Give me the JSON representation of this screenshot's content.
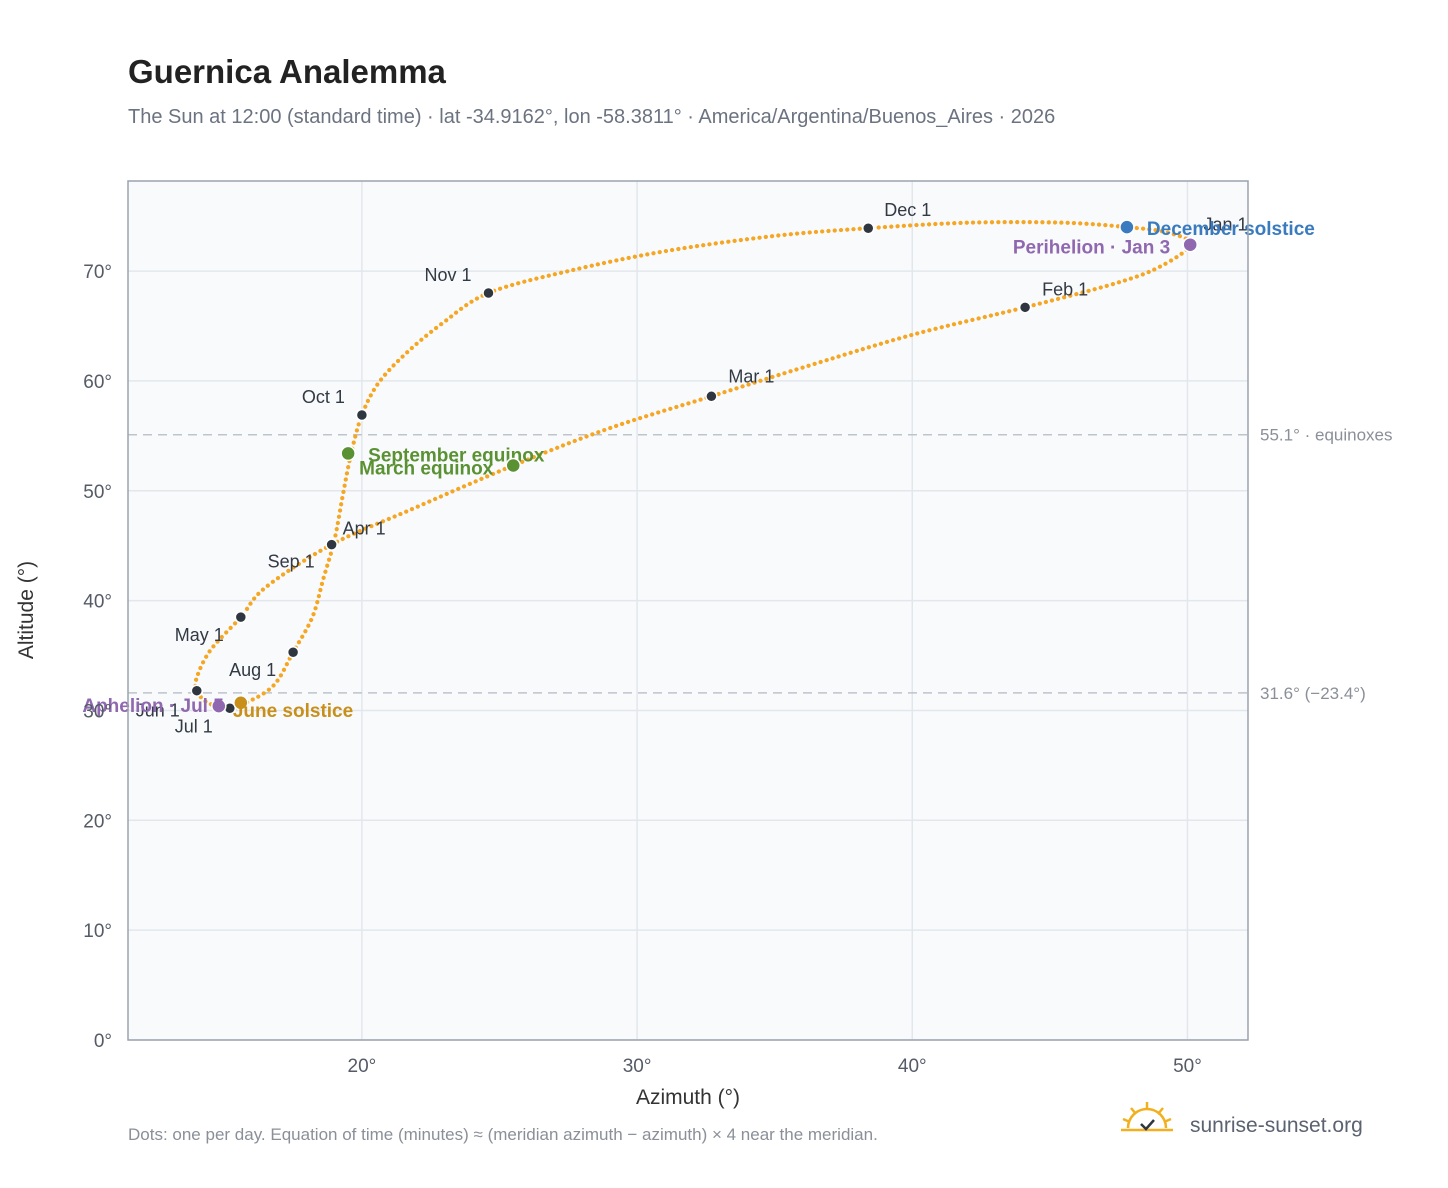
{
  "title": "Guernica Analemma",
  "subtitle": "The Sun at 12:00 (standard time) · lat -34.9162°, lon -58.3811° · America/Argentina/Buenos_Aires · 2026",
  "footnote": "Dots: one per day. Equation of time (minutes) ≈ (meridian azimuth − azimuth) × 4 near the meridian.",
  "brand": {
    "name": "sunrise-sunset.org",
    "icon": "sun-check-icon"
  },
  "colors": {
    "curve": "#f5a623",
    "month_marker": "#2f3640",
    "equinox": "#5a9132",
    "june_solstice": "#c8901a",
    "december_solstice": "#3a7bbf",
    "apsis": "#9068b0",
    "grid": "#e3e7ec",
    "plot_background": "#f8fafc",
    "frame": "#9aa3ae",
    "reference_line": "#bfc4cb"
  },
  "chart_data": {
    "type": "scatter",
    "xlabel": "Azimuth (°)",
    "ylabel": "Altitude (°)",
    "xlim": [
      11.5,
      52.2
    ],
    "ylim": [
      0,
      78.2
    ],
    "x_ticks": [
      {
        "value": 20,
        "label": "20°"
      },
      {
        "value": 30,
        "label": "30°"
      },
      {
        "value": 40,
        "label": "40°"
      },
      {
        "value": 50,
        "label": "50°"
      }
    ],
    "y_ticks": [
      {
        "value": 0,
        "label": "0°"
      },
      {
        "value": 10,
        "label": "10°"
      },
      {
        "value": 20,
        "label": "20°"
      },
      {
        "value": 30,
        "label": "30°"
      },
      {
        "value": 40,
        "label": "40°"
      },
      {
        "value": 50,
        "label": "50°"
      },
      {
        "value": 60,
        "label": "60°"
      },
      {
        "value": 70,
        "label": "70°"
      }
    ],
    "grid": true,
    "daily_dots": "one per day",
    "analemma_path": [
      {
        "az": 50.1,
        "alt": 72.4
      },
      {
        "az": 49.0,
        "alt": 70.4
      },
      {
        "az": 47.4,
        "alt": 68.9
      },
      {
        "az": 44.1,
        "alt": 66.7
      },
      {
        "az": 40.0,
        "alt": 64.2
      },
      {
        "az": 36.0,
        "alt": 61.2
      },
      {
        "az": 32.7,
        "alt": 58.6
      },
      {
        "az": 29.0,
        "alt": 55.7
      },
      {
        "az": 25.5,
        "alt": 52.3
      },
      {
        "az": 21.7,
        "alt": 48.2
      },
      {
        "az": 18.9,
        "alt": 45.1
      },
      {
        "az": 16.5,
        "alt": 41.2
      },
      {
        "az": 15.6,
        "alt": 38.5
      },
      {
        "az": 14.5,
        "alt": 35.5
      },
      {
        "az": 14.0,
        "alt": 33.0
      },
      {
        "az": 14.0,
        "alt": 31.8
      },
      {
        "az": 14.4,
        "alt": 30.7
      },
      {
        "az": 15.2,
        "alt": 30.2
      },
      {
        "az": 15.8,
        "alt": 30.7
      },
      {
        "az": 16.8,
        "alt": 32.3
      },
      {
        "az": 17.5,
        "alt": 35.3
      },
      {
        "az": 18.2,
        "alt": 38.5
      },
      {
        "az": 18.6,
        "alt": 42.0
      },
      {
        "az": 19.0,
        "alt": 45.5
      },
      {
        "az": 19.3,
        "alt": 49.5
      },
      {
        "az": 19.6,
        "alt": 53.3
      },
      {
        "az": 20.0,
        "alt": 56.9
      },
      {
        "az": 20.6,
        "alt": 59.8
      },
      {
        "az": 21.6,
        "alt": 62.5
      },
      {
        "az": 22.9,
        "alt": 65.2
      },
      {
        "az": 24.6,
        "alt": 68.0
      },
      {
        "az": 27.5,
        "alt": 70.0
      },
      {
        "az": 31.0,
        "alt": 71.8
      },
      {
        "az": 35.0,
        "alt": 73.2
      },
      {
        "az": 38.4,
        "alt": 73.9
      },
      {
        "az": 42.0,
        "alt": 74.4
      },
      {
        "az": 45.5,
        "alt": 74.4
      },
      {
        "az": 47.8,
        "alt": 74.0
      },
      {
        "az": 49.3,
        "alt": 73.5
      },
      {
        "az": 50.1,
        "alt": 72.4
      }
    ],
    "month_markers": [
      {
        "label": "Jan 1",
        "az": 50.0,
        "alt": 72.4,
        "anchor": "start",
        "dx": 16,
        "dy": -14
      },
      {
        "label": "Feb 1",
        "az": 44.1,
        "alt": 66.7,
        "anchor": "start",
        "dx": 17,
        "dy": -12
      },
      {
        "label": "Mar 1",
        "az": 32.7,
        "alt": 58.6,
        "anchor": "start",
        "dx": 17,
        "dy": -14
      },
      {
        "label": "Apr 1",
        "az": 18.9,
        "alt": 45.1,
        "anchor": "start",
        "dx": 11,
        "dy": -10
      },
      {
        "label": "May 1",
        "az": 15.6,
        "alt": 38.5,
        "anchor": "end",
        "dx": -17,
        "dy": 24
      },
      {
        "label": "Jun 1",
        "az": 14.0,
        "alt": 31.8,
        "anchor": "end",
        "dx": -17,
        "dy": 26
      },
      {
        "label": "Jul 1",
        "az": 15.2,
        "alt": 30.2,
        "anchor": "end",
        "dx": -17,
        "dy": 24
      },
      {
        "label": "Aug 1",
        "az": 17.5,
        "alt": 35.3,
        "anchor": "end",
        "dx": -17,
        "dy": 24
      },
      {
        "label": "Sep 1",
        "az": 18.9,
        "alt": 45.1,
        "anchor": "end",
        "dx": -17,
        "dy": 23
      },
      {
        "label": "Oct 1",
        "az": 20.0,
        "alt": 56.9,
        "anchor": "end",
        "dx": -17,
        "dy": -12
      },
      {
        "label": "Nov 1",
        "az": 24.6,
        "alt": 68.0,
        "anchor": "end",
        "dx": -17,
        "dy": -12
      },
      {
        "label": "Dec 1",
        "az": 38.4,
        "alt": 73.9,
        "anchor": "start",
        "dx": 16,
        "dy": -12
      }
    ],
    "events": [
      {
        "label": "September equinox",
        "az": 19.5,
        "alt": 53.4,
        "color": "#5a9132",
        "anchor": "start",
        "dx": 20,
        "dy": 8
      },
      {
        "label": "March equinox",
        "az": 25.5,
        "alt": 52.3,
        "color": "#5a9132",
        "anchor": "end",
        "dx": -20,
        "dy": 9
      },
      {
        "label": "June solstice",
        "az": 15.6,
        "alt": 30.7,
        "color": "#c8901a",
        "anchor": "start",
        "dx": -8,
        "dy": 14
      },
      {
        "label": "December solstice",
        "az": 47.8,
        "alt": 74.0,
        "color": "#3a7bbf",
        "anchor": "start",
        "dx": 20,
        "dy": 8
      },
      {
        "label": "Aphelion · Jul 5",
        "az": 14.8,
        "alt": 30.4,
        "color": "#9068b0",
        "anchor": "end",
        "dx": 5,
        "dy": 6
      },
      {
        "label": "Perihelion · Jan 3",
        "az": 50.1,
        "alt": 72.4,
        "color": "#9068b0",
        "anchor": "end",
        "dx": -20,
        "dy": 9
      }
    ],
    "reference_lines": [
      {
        "alt": 55.1,
        "label": "55.1° · equinoxes"
      },
      {
        "alt": 31.6,
        "label": "31.6° (−23.4°)"
      }
    ]
  }
}
